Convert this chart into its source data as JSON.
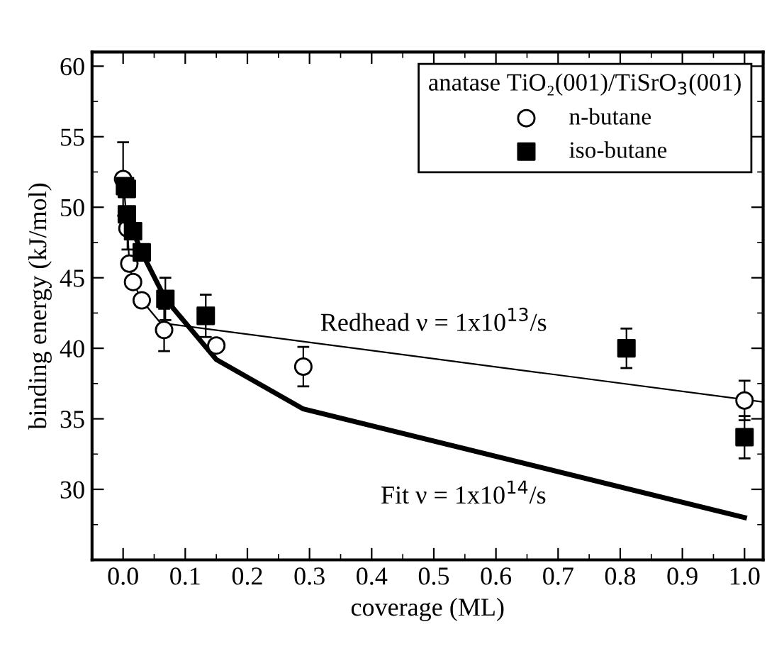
{
  "chart_data": {
    "type": "scatter",
    "xlabel": "coverage (ML)",
    "ylabel": "binding energy (kJ/mol)",
    "legend_title": "anatase TiO₂(001)/TiSrO$_{3}$(001)",
    "legend": "top right",
    "xlim": [
      -0.05,
      1.03
    ],
    "ylim": [
      25,
      61
    ],
    "xticks": [
      {
        "value": 0,
        "label": "0.0"
      },
      0.1,
      0.2,
      0.3,
      0.4,
      0.5,
      0.6,
      0.7,
      0.8,
      0.9,
      {
        "value": 1,
        "label": "1.0"
      }
    ],
    "yticks": [
      30,
      35,
      40,
      45,
      50,
      55,
      60
    ],
    "series": [
      {
        "name": "n-butane",
        "marker": "circle",
        "color": "#000000",
        "x": [
          0.0,
          0.007,
          0.01,
          0.016,
          0.03,
          0.066,
          0.15,
          0.29,
          1.0
        ],
        "values": [
          52.0,
          48.5,
          46.0,
          44.7,
          43.4,
          41.3,
          40.2,
          38.7,
          36.3
        ],
        "errors": [
          2.6,
          1.5,
          null,
          null,
          null,
          1.5,
          null,
          1.4,
          1.4
        ]
      },
      {
        "name": "iso-butane",
        "marker": "square",
        "color": "#000000",
        "x": [
          0.003,
          0.006,
          0.006,
          0.016,
          0.03,
          0.068,
          0.133,
          0.81,
          1.0
        ],
        "values": [
          51.5,
          51.3,
          49.5,
          48.3,
          46.8,
          43.5,
          42.3,
          40.0,
          33.7
        ],
        "errors": [
          null,
          null,
          null,
          null,
          null,
          1.5,
          1.5,
          1.4,
          1.5
        ]
      },
      {
        "type": "line",
        "color": "#000000",
        "line_style": "solid",
        "x": [
          0.0,
          0.007,
          0.01,
          0.016,
          0.03,
          0.06,
          1.03
        ],
        "values": [
          52.0,
          48.5,
          46.0,
          44.7,
          43.4,
          41.8,
          36.2
        ]
      },
      {
        "type": "line",
        "color": "#000000",
        "line_style": "solid",
        "x": [
          0.016,
          0.03,
          0.068,
          0.15,
          0.29,
          1.0
        ],
        "values": [
          48.3,
          46.8,
          43.5,
          39.2,
          35.7,
          28.0
        ]
      }
    ],
    "annotations": [
      "Redhead ν = 1x10$^{13}$/s",
      "Fit ν = 1x10$^{14}$/s"
    ]
  }
}
